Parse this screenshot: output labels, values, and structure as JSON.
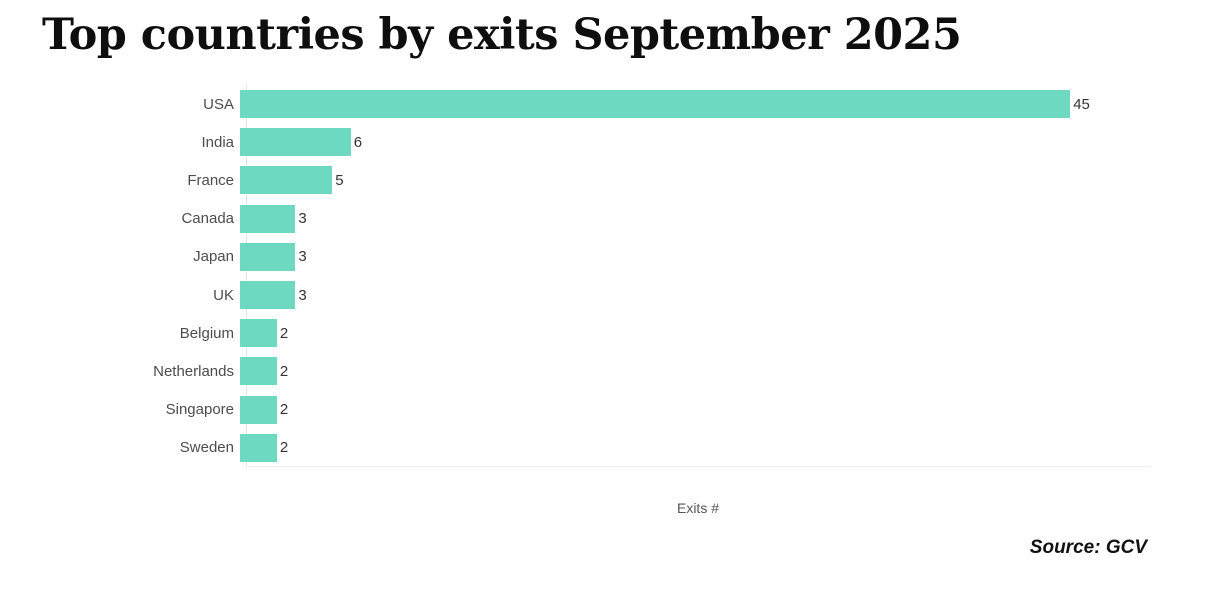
{
  "title": "Top countries by exits September 2025",
  "source": "Source: GCV",
  "colors": {
    "bar": "#6dd9c1",
    "title_text": "#0e0e0e",
    "category_label": "#4d4d4d",
    "value_label": "#333333",
    "axis_line": "#e4e4e4",
    "baseline": "#f0f0f0",
    "background": "#ffffff"
  },
  "chart_data": {
    "type": "bar",
    "orientation": "horizontal",
    "title": "Top countries by exits September 2025",
    "xlabel": "Exits #",
    "ylabel": "",
    "categories": [
      "USA",
      "India",
      "France",
      "Canada",
      "Japan",
      "UK",
      "Belgium",
      "Netherlands",
      "Singapore",
      "Sweden"
    ],
    "values": [
      45,
      6,
      5,
      3,
      3,
      3,
      2,
      2,
      2,
      2
    ],
    "xlim": [
      0,
      49
    ],
    "grid": false,
    "legend": false,
    "data_labels": true,
    "bar_color": "#6dd9c1",
    "annotation": "Source: GCV"
  }
}
